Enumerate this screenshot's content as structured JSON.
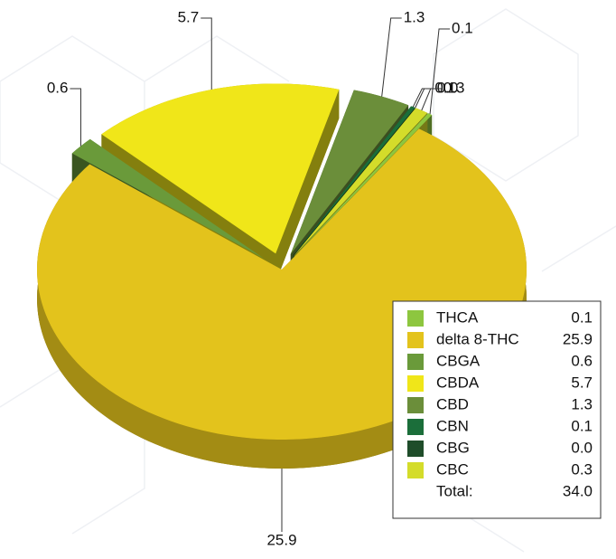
{
  "chart_data": {
    "type": "pie3d",
    "categories": [
      "THCA",
      "delta 8-THC",
      "CBGA",
      "CBDA",
      "CBD",
      "CBN",
      "CBG",
      "CBC"
    ],
    "values": [
      0.1,
      25.9,
      0.6,
      5.7,
      1.3,
      0.1,
      0.0,
      0.3
    ],
    "value_labels": [
      "0.1",
      "25.9",
      "0.6",
      "5.7",
      "1.3",
      "0.1",
      "0.0",
      "0.3"
    ],
    "colors": [
      "#8dc63f",
      "#e3c31c",
      "#6a9a3a",
      "#f0e619",
      "#6b8e3a",
      "#1b6e3a",
      "#1f4d2a",
      "#d4dc2a"
    ],
    "total_label": "Total:",
    "total": "34.0",
    "legend": "lower right"
  }
}
